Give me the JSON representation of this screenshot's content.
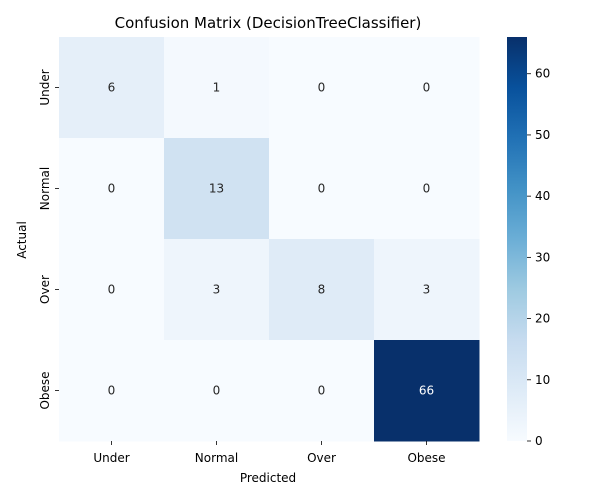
{
  "chart_data": {
    "type": "heatmap",
    "title": "Confusion Matrix (DecisionTreeClassifier)",
    "xlabel": "Predicted",
    "ylabel": "Actual",
    "x_categories": [
      "Under",
      "Normal",
      "Over",
      "Obese"
    ],
    "y_categories": [
      "Under",
      "Normal",
      "Over",
      "Obese"
    ],
    "values": [
      [
        6,
        1,
        0,
        0
      ],
      [
        0,
        13,
        0,
        0
      ],
      [
        0,
        3,
        8,
        3
      ],
      [
        0,
        0,
        0,
        66
      ]
    ],
    "colormap": "Blues",
    "colorbar_ticks": [
      0,
      10,
      20,
      30,
      40,
      50,
      60
    ],
    "value_range": [
      0,
      66
    ],
    "grid": false
  }
}
